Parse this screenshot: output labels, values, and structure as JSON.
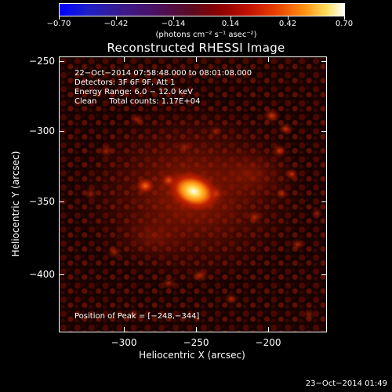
{
  "colorbar": {
    "labels": [
      "−0.70",
      "−0.42",
      "−0.14",
      "0.14",
      "0.42",
      "0.70"
    ],
    "units": "(photons cm⁻² s⁻¹ asec⁻²)"
  },
  "title": "Reconstructed RHESSI Image",
  "info": {
    "line1": "22−Oct−2014 07:58:48.000 to 08:01:08.000",
    "line2": "Detectors: 3F 6F 9F, Att 1",
    "line3": "Energy Range: 6.0 − 12.0 keV",
    "line4": "Clean     Total counts: 1.17E+04",
    "peak": "Position of Peak = [−248,−344]"
  },
  "axes": {
    "y_title": "Heliocentric Y (arcsec)",
    "x_title": "Heliocentric X (arcsec)",
    "y_ticks": [
      "−250",
      "−300",
      "−350",
      "−400"
    ],
    "x_ticks": [
      "−300",
      "−250",
      "−200"
    ]
  },
  "timestamp": "23−Oct−2014 01:49",
  "chart_data": {
    "type": "heatmap",
    "title": "Reconstructed RHESSI Image",
    "xlabel": "Heliocentric X (arcsec)",
    "ylabel": "Heliocentric Y (arcsec)",
    "xlim": [
      -345,
      -160
    ],
    "ylim": [
      -440,
      -245
    ],
    "colorbar_range": [
      -0.7,
      0.7
    ],
    "colorbar_units": "photons cm^-2 s^-1 asec^-2",
    "peak_position": [
      -248,
      -344
    ],
    "sources": [
      {
        "x": -248,
        "y": -344,
        "intensity": 0.7
      },
      {
        "x": -285,
        "y": -339,
        "intensity": 0.3
      },
      {
        "x": -262,
        "y": -350,
        "intensity": 0.25
      }
    ],
    "colors": {
      "high": "#ffffff",
      "mid": "#e84000",
      "low": "#8a0000",
      "background": "#150000"
    }
  }
}
